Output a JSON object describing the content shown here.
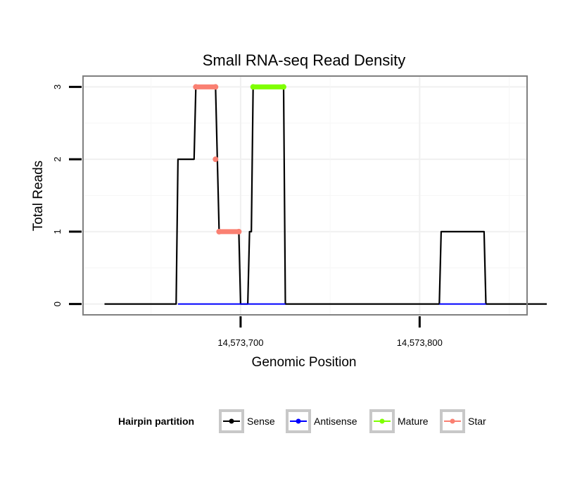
{
  "chart_data": {
    "type": "line",
    "title": "Small RNA-seq Read Density",
    "xlabel": "Genomic Position",
    "ylabel": "Total Reads",
    "xlim": [
      14573612,
      14573860
    ],
    "ylim": [
      -0.15,
      3.15
    ],
    "x_ticks": [
      {
        "value": 14573700,
        "label": "14,573,700"
      },
      {
        "value": 14573800,
        "label": "14,573,800"
      }
    ],
    "y_ticks": [
      {
        "value": 0,
        "label": "0"
      },
      {
        "value": 1,
        "label": "1"
      },
      {
        "value": 2,
        "label": "2"
      },
      {
        "value": 3,
        "label": "3"
      }
    ],
    "grid": true,
    "legend": {
      "title": "Hairpin partition",
      "position": "bottom",
      "entries": [
        {
          "name": "Sense",
          "color": "#000000"
        },
        {
          "name": "Antisense",
          "color": "#0000ff"
        },
        {
          "name": "Mature",
          "color": "#7fff00"
        },
        {
          "name": "Star",
          "color": "#fa8072"
        }
      ]
    },
    "series": [
      {
        "name": "Sense",
        "color": "#000000",
        "points": [
          [
            14573624,
            0
          ],
          [
            14573664,
            0
          ],
          [
            14573665,
            2
          ],
          [
            14573674,
            2
          ],
          [
            14573675,
            3
          ],
          [
            14573686,
            3
          ],
          [
            14573688,
            1
          ],
          [
            14573699,
            1
          ],
          [
            14573700,
            0
          ],
          [
            14573704,
            0
          ],
          [
            14573705,
            1
          ],
          [
            14573706,
            1
          ],
          [
            14573707,
            3
          ],
          [
            14573724,
            3
          ],
          [
            14573725,
            0
          ],
          [
            14573811,
            0
          ],
          [
            14573812,
            1
          ],
          [
            14573836,
            1
          ],
          [
            14573837,
            0
          ],
          [
            14573871,
            0
          ]
        ]
      },
      {
        "name": "Antisense",
        "color": "#0000ff",
        "points": [
          [
            14573665,
            0
          ],
          [
            14573725,
            0
          ],
          [
            14573811,
            0
          ],
          [
            14573837,
            0
          ]
        ]
      },
      {
        "name": "Mature",
        "color": "#7fff00",
        "points": [
          [
            14573707,
            3
          ],
          [
            14573724,
            3
          ]
        ]
      },
      {
        "name": "Star",
        "color": "#fa8072",
        "segments": [
          [
            [
              14573675,
              3
            ],
            [
              14573686,
              3
            ]
          ],
          [
            [
              14573688,
              1
            ],
            [
              14573699,
              1
            ]
          ]
        ],
        "isolated_points": [
          [
            14573686,
            2
          ]
        ]
      }
    ]
  }
}
